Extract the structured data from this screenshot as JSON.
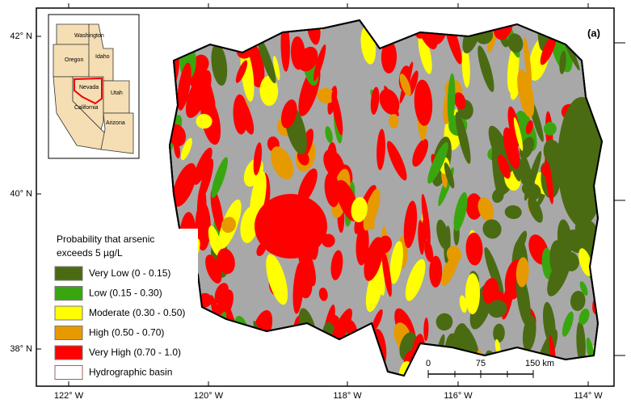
{
  "map": {
    "label": "(a)",
    "latitude_labels": [
      "42° N",
      "40° N",
      "38° N"
    ],
    "longitude_labels": [
      "122° W",
      "120° W",
      "118° W",
      "116° W",
      "114° W"
    ],
    "inset": {
      "states": [
        "Washington",
        "Oregon",
        "Idaho",
        "Nevada",
        "Utah",
        "California",
        "Arizona"
      ]
    },
    "legend": {
      "title_lines": [
        "Probability that arsenic",
        "exceeds 5 µg/L"
      ],
      "items": [
        {
          "label": "Very Low (0 - 0.15)",
          "color": "#4a6b12"
        },
        {
          "label": "Low (0.15 - 0.30)",
          "color": "#3aa60f"
        },
        {
          "label": "Moderate (0.30 - 0.50)",
          "color": "#ffff00"
        },
        {
          "label": "High (0.50 - 0.70)",
          "color": "#e69a00"
        },
        {
          "label": "Very High (0.70 - 1.0)",
          "color": "#ff0000"
        },
        {
          "label": "Hydrographic basin",
          "color": "#ffffff"
        }
      ]
    },
    "scale_bar": {
      "labels": [
        "0",
        "75",
        "150 km"
      ]
    }
  }
}
